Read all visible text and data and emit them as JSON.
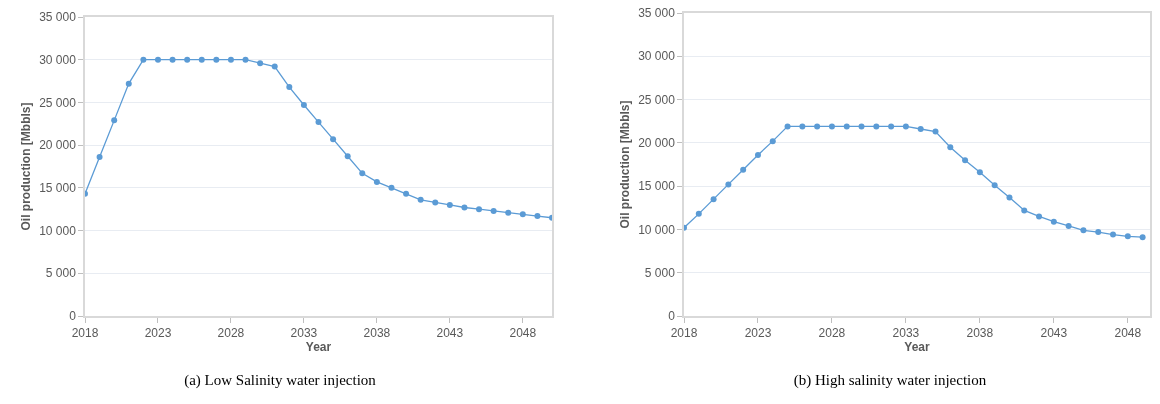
{
  "chart_data": [
    {
      "type": "line",
      "xlabel": "Year",
      "ylabel": "Oil production [Mbbls]",
      "annotations": [
        "(a) Low Salinity water injection"
      ],
      "x": [
        2018,
        2019,
        2020,
        2021,
        2022,
        2023,
        2024,
        2025,
        2026,
        2027,
        2028,
        2029,
        2030,
        2031,
        2032,
        2033,
        2034,
        2035,
        2036,
        2037,
        2038,
        2039,
        2040,
        2041,
        2042,
        2043,
        2044,
        2045,
        2046,
        2047,
        2048,
        2049,
        2050
      ],
      "series": [
        {
          "color": "#5b9bd5",
          "values": [
            14300,
            18600,
            22900,
            27200,
            30000,
            30000,
            30000,
            30000,
            30000,
            30000,
            30000,
            30000,
            29600,
            29200,
            26800,
            24700,
            22700,
            20700,
            18700,
            16700,
            15700,
            15000,
            14300,
            13600,
            13300,
            13000,
            12700,
            12500,
            12300,
            12100,
            11900,
            11700,
            11500
          ]
        }
      ],
      "xlim": [
        2018,
        2050
      ],
      "xticks": [
        2018,
        2023,
        2028,
        2033,
        2038,
        2043,
        2048
      ],
      "ylim": [
        0,
        35000
      ],
      "yticks": [
        {
          "value": 0,
          "label": "0"
        },
        {
          "value": 5000,
          "label": "5 000"
        },
        {
          "value": 10000,
          "label": "10 000"
        },
        {
          "value": 15000,
          "label": "15 000"
        },
        {
          "value": 20000,
          "label": "20 000"
        },
        {
          "value": 25000,
          "label": "25 000"
        },
        {
          "value": 30000,
          "label": "30 000"
        },
        {
          "value": 35000,
          "label": "35 000"
        }
      ],
      "grid": "y",
      "marker": "circle",
      "line_style": "solid"
    },
    {
      "type": "line",
      "xlabel": "Year",
      "ylabel": "Oil production [Mbbls]",
      "annotations": [
        "(b) High salinity water injection"
      ],
      "x": [
        2018,
        2019,
        2020,
        2021,
        2022,
        2023,
        2024,
        2025,
        2026,
        2027,
        2028,
        2029,
        2030,
        2031,
        2032,
        2033,
        2034,
        2035,
        2036,
        2037,
        2038,
        2039,
        2040,
        2041,
        2042,
        2043,
        2044,
        2045,
        2046,
        2047,
        2048,
        2049
      ],
      "series": [
        {
          "color": "#5b9bd5",
          "values": [
            10200,
            11800,
            13500,
            15200,
            16900,
            18600,
            20200,
            21900,
            21900,
            21900,
            21900,
            21900,
            21900,
            21900,
            21900,
            21900,
            21600,
            21300,
            19500,
            18000,
            16600,
            15100,
            13700,
            12200,
            11500,
            10900,
            10400,
            9900,
            9700,
            9400,
            9200,
            9100
          ]
        }
      ],
      "xlim": [
        2018,
        2049.5
      ],
      "xticks": [
        2018,
        2023,
        2028,
        2033,
        2038,
        2043,
        2048
      ],
      "ylim": [
        0,
        35000
      ],
      "yticks": [
        {
          "value": 0,
          "label": "0"
        },
        {
          "value": 5000,
          "label": "5 000"
        },
        {
          "value": 10000,
          "label": "10 000"
        },
        {
          "value": 15000,
          "label": "15 000"
        },
        {
          "value": 20000,
          "label": "20 000"
        },
        {
          "value": 25000,
          "label": "25 000"
        },
        {
          "value": 30000,
          "label": "30 000"
        },
        {
          "value": 35000,
          "label": "35 000"
        }
      ],
      "grid": "y",
      "marker": "circle",
      "line_style": "solid"
    }
  ]
}
